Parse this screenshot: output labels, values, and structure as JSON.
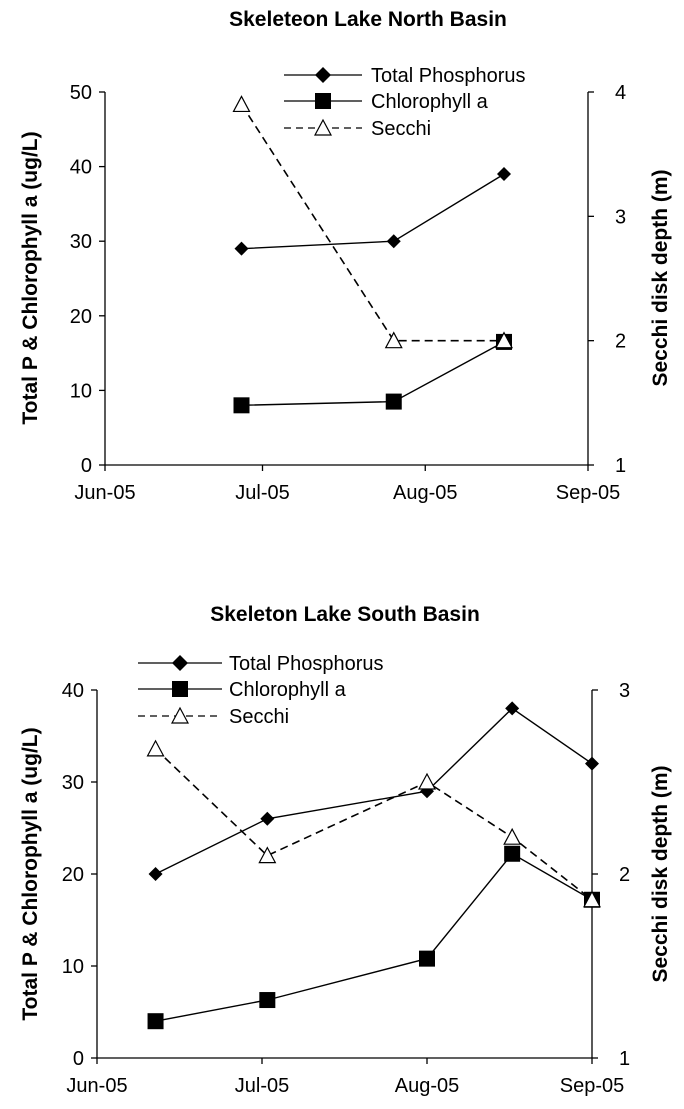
{
  "chart_data": [
    {
      "type": "line",
      "title": "Skeleteon Lake North Basin",
      "ylabel_left": "Total P & Chlorophyll a (ug/L)",
      "ylabel_right": "Secchi disk depth (m)",
      "ylim_left": [
        0,
        50
      ],
      "ylim_right": [
        1,
        4
      ],
      "yticks_left": [
        "0",
        "10",
        "20",
        "30",
        "40",
        "50"
      ],
      "yticks_right": [
        "1",
        "2",
        "3",
        "4"
      ],
      "xticks": [
        "Jun-05",
        "Jul-05",
        "Aug-05",
        "Sep-05"
      ],
      "legend": [
        "Total Phosphorus",
        "Chlorophyll a",
        "Secchi"
      ],
      "legend_position": "top",
      "series": [
        {
          "name": "Total Phosphorus",
          "axis": "left",
          "marker": "diamond",
          "dash": "solid",
          "x": [
            "2005-06-27",
            "2005-07-26",
            "2005-08-16"
          ],
          "y": [
            29,
            30,
            39
          ]
        },
        {
          "name": "Chlorophyll a",
          "axis": "left",
          "marker": "square",
          "dash": "solid",
          "x": [
            "2005-06-27",
            "2005-07-26",
            "2005-08-16"
          ],
          "y": [
            8,
            8.5,
            16.5
          ]
        },
        {
          "name": "Secchi",
          "axis": "right",
          "marker": "triangle",
          "dash": "dashed",
          "x": [
            "2005-06-27",
            "2005-07-26",
            "2005-08-16"
          ],
          "y": [
            3.9,
            2.0,
            2.0
          ]
        }
      ]
    },
    {
      "type": "line",
      "title": "Skeleton Lake South Basin",
      "ylabel_left": "Total P & Chlorophyll a (ug/L)",
      "ylabel_right": "Secchi disk depth (m)",
      "ylim_left": [
        0,
        40
      ],
      "ylim_right": [
        1,
        3
      ],
      "yticks_left": [
        "0",
        "10",
        "20",
        "30",
        "40"
      ],
      "yticks_right": [
        "1",
        "2",
        "3"
      ],
      "xticks": [
        "Jun-05",
        "Jul-05",
        "Aug-05",
        "Sep-05"
      ],
      "legend": [
        "Total Phosphorus",
        "Chlorophyll a",
        "Secchi"
      ],
      "legend_position": "top-left",
      "series": [
        {
          "name": "Total Phosphorus",
          "axis": "left",
          "marker": "diamond",
          "dash": "solid",
          "x": [
            "2005-06-11",
            "2005-07-02",
            "2005-08-01",
            "2005-08-17",
            "2005-09-01"
          ],
          "y": [
            20,
            26,
            29,
            38,
            32
          ]
        },
        {
          "name": "Chlorophyll a",
          "axis": "left",
          "marker": "square",
          "dash": "solid",
          "x": [
            "2005-06-11",
            "2005-07-02",
            "2005-08-01",
            "2005-08-17",
            "2005-09-01"
          ],
          "y": [
            4,
            6.3,
            10.8,
            22.2,
            17.2
          ]
        },
        {
          "name": "Secchi",
          "axis": "right",
          "marker": "triangle",
          "dash": "dashed",
          "x": [
            "2005-06-11",
            "2005-07-02",
            "2005-08-01",
            "2005-08-17",
            "2005-09-01"
          ],
          "y": [
            2.68,
            2.1,
            2.5,
            2.2,
            1.86
          ]
        }
      ]
    }
  ]
}
